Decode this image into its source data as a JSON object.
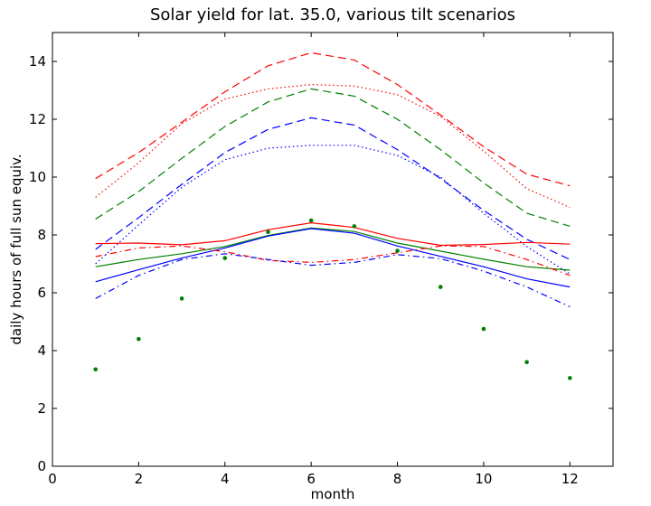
{
  "chart_data": {
    "type": "line",
    "title": "Solar yield for lat. 35.0, various tilt scenarios",
    "xlabel": "month",
    "ylabel": "daily hours of full sun equiv.",
    "xlim": [
      0,
      13
    ],
    "ylim": [
      0,
      15
    ],
    "xticks": [
      0,
      2,
      4,
      6,
      8,
      10,
      12
    ],
    "yticks": [
      0,
      2,
      4,
      6,
      8,
      10,
      12,
      14
    ],
    "grid": false,
    "x": [
      1,
      2,
      3,
      4,
      5,
      6,
      7,
      8,
      9,
      10,
      11,
      12
    ],
    "series": [
      {
        "color": "#ff0000",
        "style": "dashed",
        "values": [
          9.95,
          10.85,
          11.9,
          12.95,
          13.85,
          14.3,
          14.05,
          13.2,
          12.15,
          11.05,
          10.1,
          9.7
        ]
      },
      {
        "color": "#ff0000",
        "style": "dotted",
        "values": [
          9.3,
          10.5,
          11.85,
          12.7,
          13.05,
          13.2,
          13.15,
          12.85,
          12.1,
          10.9,
          9.6,
          8.95
        ]
      },
      {
        "color": "#008000",
        "style": "dashed",
        "values": [
          8.55,
          9.5,
          10.65,
          11.75,
          12.6,
          13.05,
          12.8,
          12.0,
          10.95,
          9.8,
          8.75,
          8.3
        ]
      },
      {
        "color": "#0000ff",
        "style": "dashed",
        "values": [
          7.5,
          8.6,
          9.75,
          10.85,
          11.65,
          12.05,
          11.8,
          10.95,
          9.95,
          8.85,
          7.85,
          7.15
        ]
      },
      {
        "color": "#0000ff",
        "style": "dotted",
        "values": [
          7.0,
          8.35,
          9.65,
          10.6,
          11.0,
          11.1,
          11.1,
          10.75,
          10.0,
          8.75,
          7.6,
          6.65
        ]
      },
      {
        "color": "#ff0000",
        "style": "solid",
        "values": [
          7.7,
          7.72,
          7.66,
          7.8,
          8.18,
          8.42,
          8.26,
          7.88,
          7.64,
          7.67,
          7.74,
          7.68
        ]
      },
      {
        "color": "#008000",
        "style": "solid",
        "values": [
          6.9,
          7.15,
          7.35,
          7.6,
          7.98,
          8.24,
          8.12,
          7.72,
          7.44,
          7.16,
          6.9,
          6.78
        ]
      },
      {
        "color": "#0000ff",
        "style": "solid",
        "values": [
          6.38,
          6.8,
          7.2,
          7.55,
          7.96,
          8.22,
          8.06,
          7.62,
          7.26,
          6.9,
          6.48,
          6.2
        ]
      },
      {
        "color": "#ff0000",
        "style": "dashdot",
        "values": [
          7.25,
          7.55,
          7.62,
          7.42,
          7.12,
          7.05,
          7.15,
          7.38,
          7.62,
          7.6,
          7.15,
          6.6
        ]
      },
      {
        "color": "#0000ff",
        "style": "dashdot",
        "values": [
          5.8,
          6.6,
          7.15,
          7.35,
          7.15,
          6.95,
          7.05,
          7.32,
          7.18,
          6.75,
          6.2,
          5.52
        ]
      },
      {
        "color": "#008000",
        "style": "points",
        "values": [
          3.35,
          4.4,
          5.8,
          7.2,
          8.1,
          8.5,
          8.3,
          7.45,
          6.2,
          4.75,
          3.6,
          3.05
        ]
      }
    ]
  }
}
